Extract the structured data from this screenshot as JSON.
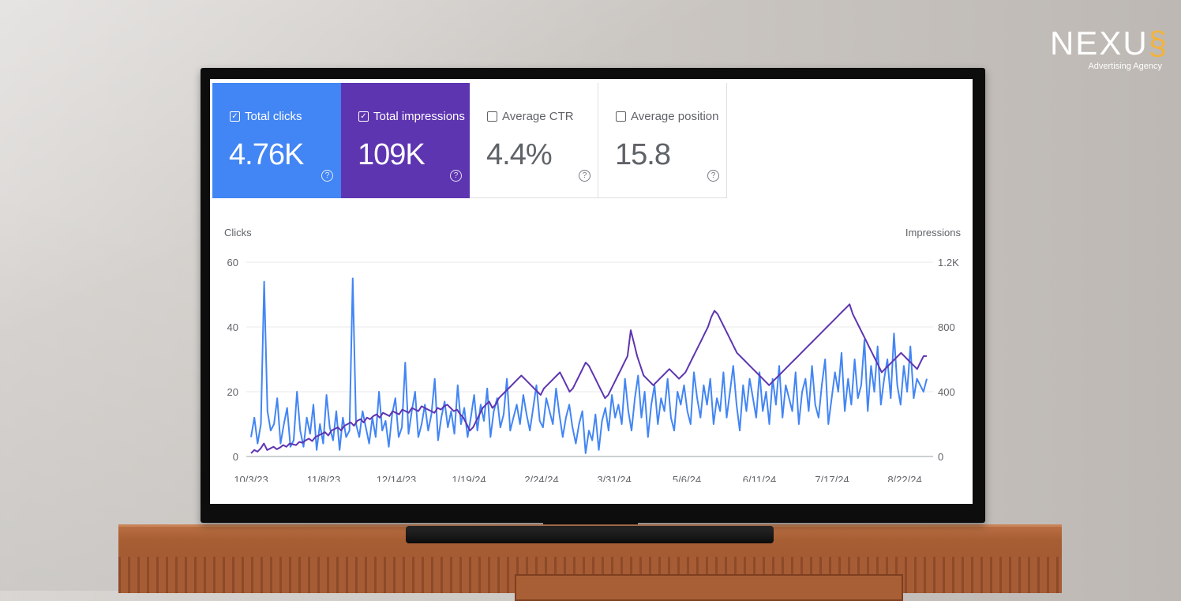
{
  "brand": {
    "logo_text": "NEXU",
    "tagline": "Advertising Agency",
    "accent_color": "#f2b33d"
  },
  "metrics": [
    {
      "label": "Total clicks",
      "value": "4.76K",
      "checked": true,
      "color": "#4285f4"
    },
    {
      "label": "Total impressions",
      "value": "109K",
      "checked": true,
      "color": "#5e35b1"
    },
    {
      "label": "Average CTR",
      "value": "4.4%",
      "checked": false
    },
    {
      "label": "Average position",
      "value": "15.8",
      "checked": false
    }
  ],
  "chart_data": {
    "type": "line",
    "left_axis_label": "Clicks",
    "right_axis_label": "Impressions",
    "left_ticks": [
      "0",
      "20",
      "40",
      "60"
    ],
    "right_ticks": [
      "0",
      "400",
      "800",
      "1.2K"
    ],
    "left_ylim": [
      0,
      60
    ],
    "right_ylim": [
      0,
      1200
    ],
    "x_tick_labels": [
      "10/3/23",
      "11/8/23",
      "12/14/23",
      "1/19/24",
      "2/24/24",
      "3/31/24",
      "5/6/24",
      "6/11/24",
      "7/17/24",
      "8/22/24"
    ],
    "grid": true,
    "series": [
      {
        "name": "Clicks",
        "axis": "left",
        "color": "#4285f4",
        "values": [
          6,
          12,
          4,
          10,
          54,
          14,
          8,
          10,
          18,
          4,
          10,
          15,
          3,
          5,
          20,
          8,
          3,
          12,
          7,
          16,
          2,
          10,
          4,
          19,
          9,
          5,
          14,
          2,
          12,
          6,
          8,
          55,
          10,
          6,
          14,
          9,
          4,
          12,
          6,
          20,
          8,
          11,
          3,
          13,
          18,
          6,
          9,
          29,
          7,
          14,
          20,
          6,
          10,
          16,
          8,
          13,
          24,
          5,
          12,
          17,
          9,
          14,
          7,
          22,
          10,
          15,
          6,
          12,
          19,
          8,
          16,
          11,
          21,
          6,
          14,
          18,
          9,
          13,
          24,
          8,
          12,
          16,
          10,
          19,
          13,
          8,
          15,
          22,
          11,
          9,
          18,
          14,
          10,
          21,
          13,
          6,
          12,
          16,
          9,
          4,
          10,
          14,
          1,
          8,
          5,
          13,
          2,
          11,
          15,
          8,
          19,
          12,
          16,
          10,
          24,
          14,
          8,
          18,
          25,
          12,
          20,
          6,
          16,
          22,
          10,
          18,
          14,
          24,
          12,
          8,
          20,
          16,
          22,
          14,
          10,
          26,
          18,
          12,
          22,
          16,
          24,
          10,
          18,
          14,
          26,
          12,
          20,
          28,
          16,
          8,
          22,
          14,
          24,
          18,
          12,
          26,
          14,
          20,
          10,
          24,
          16,
          28,
          12,
          22,
          18,
          14,
          26,
          10,
          20,
          24,
          14,
          28,
          16,
          12,
          22,
          30,
          10,
          18,
          26,
          20,
          32,
          14,
          24,
          16,
          30,
          18,
          22,
          36,
          14,
          28,
          20,
          34,
          16,
          24,
          30,
          18,
          38,
          22,
          16,
          28,
          20,
          34,
          18,
          24,
          22,
          20,
          24
        ]
      },
      {
        "name": "Impressions",
        "axis": "right",
        "color": "#5e35b1",
        "values": [
          20,
          40,
          30,
          50,
          80,
          40,
          50,
          60,
          45,
          55,
          70,
          60,
          80,
          75,
          70,
          90,
          85,
          100,
          110,
          95,
          120,
          130,
          140,
          150,
          130,
          160,
          170,
          180,
          160,
          190,
          200,
          210,
          190,
          220,
          230,
          210,
          240,
          230,
          250,
          260,
          240,
          270,
          260,
          250,
          280,
          270,
          260,
          290,
          280,
          270,
          300,
          290,
          280,
          310,
          300,
          290,
          280,
          270,
          300,
          290,
          310,
          320,
          300,
          280,
          290,
          260,
          240,
          200,
          160,
          180,
          220,
          260,
          300,
          320,
          340,
          300,
          320,
          360,
          380,
          400,
          420,
          440,
          460,
          480,
          500,
          480,
          460,
          440,
          420,
          400,
          380,
          420,
          440,
          460,
          480,
          500,
          520,
          480,
          440,
          400,
          420,
          460,
          500,
          540,
          580,
          560,
          520,
          480,
          440,
          400,
          360,
          380,
          420,
          460,
          500,
          540,
          580,
          620,
          780,
          700,
          620,
          560,
          500,
          480,
          460,
          440,
          460,
          480,
          500,
          520,
          540,
          520,
          500,
          480,
          500,
          520,
          560,
          600,
          640,
          680,
          720,
          760,
          800,
          860,
          900,
          880,
          840,
          800,
          760,
          720,
          680,
          640,
          620,
          600,
          580,
          560,
          540,
          520,
          500,
          480,
          460,
          440,
          460,
          480,
          500,
          520,
          540,
          560,
          580,
          600,
          620,
          640,
          660,
          680,
          700,
          720,
          740,
          760,
          780,
          800,
          820,
          840,
          860,
          880,
          900,
          920,
          940,
          880,
          840,
          800,
          760,
          720,
          680,
          640,
          600,
          560,
          520,
          540,
          560,
          580,
          600,
          620,
          640,
          620,
          600,
          580,
          560,
          540,
          580,
          620,
          620
        ]
      }
    ]
  }
}
